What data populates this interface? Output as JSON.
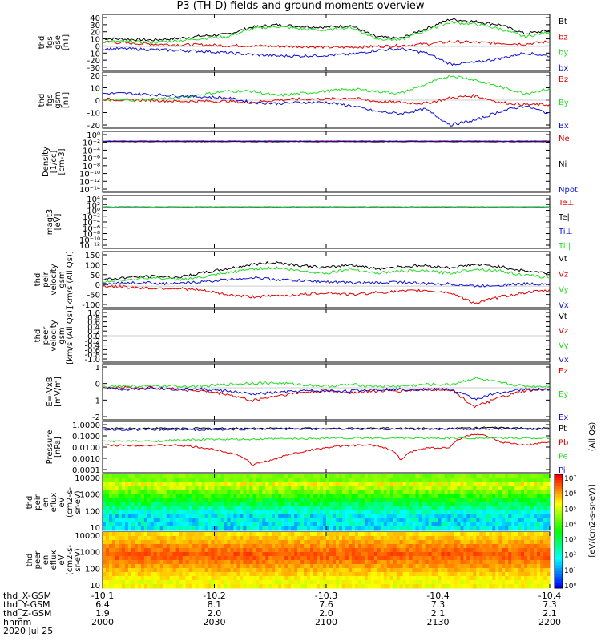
{
  "title": "P3 (TH-D) fields and ground moments overview",
  "colors": {
    "black": "#000000",
    "red": "#e00000",
    "green": "#22dd22",
    "blue": "#1010d0"
  },
  "x_axis": {
    "ticks": [
      "2000",
      "2030",
      "2100",
      "2130",
      "2200"
    ],
    "x_gsm": [
      "-10.1",
      "-10.2",
      "-10.3",
      "-10.4",
      "-10.4"
    ],
    "y_gsm": [
      "6.4",
      "8.1",
      "7.6",
      "7.3",
      "7.3"
    ],
    "z_gsm": [
      "1.9",
      "2.0",
      "2.0",
      "2.1",
      "2.1"
    ],
    "row_labels": [
      "thd_X-GSM",
      "thd_Y-GSM",
      "thd_Z-GSM",
      "hhmm",
      "2020 Jul 25"
    ]
  },
  "chart_data": [
    {
      "type": "line",
      "ylabel_lines": [
        "thd",
        "fgs",
        "gse",
        "[nT]"
      ],
      "ylim": [
        -30,
        40
      ],
      "yticks": [
        "40",
        "30",
        "20",
        "10",
        "0",
        "-10",
        "-20",
        "-30"
      ],
      "series": [
        {
          "name": "Bt",
          "color": "black",
          "values": [
            10,
            9,
            8,
            10,
            13,
            15,
            24,
            27,
            25,
            24,
            26,
            12,
            10,
            22,
            34,
            31,
            27,
            16,
            20
          ]
        },
        {
          "name": "bz",
          "color": "red",
          "values": [
            6,
            4,
            3,
            2,
            2,
            1,
            1,
            0,
            0,
            -1,
            -1,
            0,
            1,
            3,
            6,
            5,
            4,
            3,
            6
          ]
        },
        {
          "name": "by",
          "color": "green",
          "values": [
            6,
            6,
            5,
            7,
            10,
            12,
            22,
            25,
            22,
            20,
            24,
            10,
            8,
            20,
            30,
            28,
            22,
            12,
            18
          ]
        },
        {
          "name": "bx",
          "color": "blue",
          "values": [
            -3,
            -3,
            -4,
            -5,
            -6,
            -8,
            -10,
            -12,
            -12,
            -11,
            -10,
            -5,
            -3,
            -8,
            -22,
            -20,
            -15,
            -8,
            -12
          ]
        }
      ]
    },
    {
      "type": "line",
      "ylabel_lines": [
        "thd",
        "fgs",
        "gsm",
        "[nT]"
      ],
      "ylim": [
        -25,
        25
      ],
      "yticks": [
        "20",
        "10",
        "0",
        "-10",
        "-20"
      ],
      "series": [
        {
          "name": "Bz",
          "color": "red",
          "values": [
            1,
            0,
            0,
            -1,
            -1,
            -1,
            -2,
            0,
            1,
            1,
            2,
            -1,
            -2,
            -3,
            2,
            4,
            -2,
            -4,
            -4
          ]
        },
        {
          "name": "By",
          "color": "green",
          "values": [
            0,
            0,
            1,
            2,
            5,
            8,
            8,
            4,
            6,
            8,
            10,
            8,
            6,
            14,
            22,
            18,
            12,
            6,
            10
          ]
        },
        {
          "name": "Bx",
          "color": "blue",
          "values": [
            6,
            6,
            5,
            4,
            3,
            2,
            -2,
            -3,
            -2,
            -2,
            -5,
            -10,
            -12,
            -8,
            -22,
            -18,
            -10,
            -5,
            -12
          ]
        }
      ]
    },
    {
      "type": "line",
      "ylabel_lines": [
        "Density",
        "[1/cc]",
        "[cm-3]"
      ],
      "log": true,
      "ylim": [
        -14,
        2
      ],
      "yticks": [
        "10⁰",
        "10⁻²",
        "10⁻⁴",
        "10⁻⁶",
        "10⁻⁸",
        "10⁻¹⁰",
        "10⁻¹²",
        "10⁻¹⁴"
      ],
      "series": [
        {
          "name": "Ne",
          "color": "red",
          "values": [
            0.3,
            0.3,
            0.3,
            0.3
          ]
        },
        {
          "name": "Ni",
          "color": "black",
          "values": [
            0.2,
            0.2,
            0.2,
            0.2
          ]
        },
        {
          "name": "Npot",
          "color": "blue",
          "values": [
            0.25,
            0.25,
            0.25,
            0.25
          ]
        }
      ]
    },
    {
      "type": "line",
      "ylabel_lines": [
        "magt3",
        "[eV]"
      ],
      "log": true,
      "ylim": [
        -12,
        4
      ],
      "yticks": [
        "10⁴",
        "10²",
        "10⁰",
        "10⁻²",
        "10⁻⁴",
        "10⁻⁶",
        "10⁻⁸",
        "10⁻¹⁰",
        "10⁻¹²"
      ],
      "series": [
        {
          "name": "Te⊥",
          "color": "red",
          "values": [
            3,
            3,
            3,
            3
          ]
        },
        {
          "name": "Te||",
          "color": "black",
          "values": [
            3.2,
            3.2,
            3.2,
            3.2
          ]
        },
        {
          "name": "Ti⊥",
          "color": "blue",
          "values": [
            3.6,
            3.6,
            3.6,
            3.6
          ]
        },
        {
          "name": "Ti||",
          "color": "green",
          "values": [
            3.4,
            3.4,
            3.4,
            3.4
          ]
        }
      ]
    },
    {
      "type": "line",
      "ylabel_lines": [
        "thd",
        "peir",
        "velocity",
        "gsm",
        "[km/s (All Qs)]"
      ],
      "ylim": [
        -100,
        160
      ],
      "yticks": [
        "150",
        "100",
        "50",
        "0",
        "-50",
        "-100"
      ],
      "series": [
        {
          "name": "Vt",
          "color": "black",
          "values": [
            30,
            40,
            45,
            40,
            60,
            80,
            100,
            110,
            95,
            85,
            100,
            80,
            90,
            95,
            85,
            100,
            90,
            70,
            60
          ]
        },
        {
          "name": "Vz",
          "color": "red",
          "values": [
            0,
            -5,
            -10,
            -10,
            -20,
            -40,
            -50,
            -45,
            -40,
            -30,
            -40,
            -30,
            -25,
            -20,
            -30,
            -80,
            -50,
            -30,
            -20
          ]
        },
        {
          "name": "Vy",
          "color": "green",
          "values": [
            20,
            30,
            40,
            30,
            40,
            60,
            80,
            85,
            70,
            60,
            80,
            60,
            70,
            70,
            60,
            80,
            70,
            50,
            40
          ]
        },
        {
          "name": "Vx",
          "color": "blue",
          "values": [
            10,
            15,
            15,
            10,
            20,
            30,
            40,
            30,
            25,
            20,
            15,
            15,
            20,
            10,
            10,
            0,
            5,
            10,
            10
          ]
        }
      ]
    },
    {
      "type": "line",
      "ylabel_lines": [
        "thd",
        "peer",
        "velocity",
        "gsm",
        "[km/s (All Qs)]"
      ],
      "ylim": [
        -1,
        1
      ],
      "yticks": [
        "1.0",
        "0.8",
        "0.6",
        "0.4",
        "0.2",
        "0.0",
        "-0.2",
        "-0.4",
        "-0.6",
        "-0.8",
        "-1.0"
      ],
      "series": [
        {
          "name": "Vt",
          "color": "black",
          "values": []
        },
        {
          "name": "Vz",
          "color": "red",
          "values": []
        },
        {
          "name": "Vy",
          "color": "green",
          "values": []
        },
        {
          "name": "Vx",
          "color": "blue",
          "values": []
        }
      ]
    },
    {
      "type": "line",
      "ylabel_lines": [
        "E=-VxB",
        "[mV/m]"
      ],
      "ylim": [
        -2,
        1.5
      ],
      "yticks": [
        "1",
        "0",
        "-1",
        "-2"
      ],
      "series": [
        {
          "name": "Ez",
          "color": "red",
          "values": [
            0,
            0,
            0,
            -0.1,
            -0.2,
            -0.4,
            -0.8,
            -0.5,
            -0.3,
            -0.2,
            -0.3,
            -0.2,
            -0.2,
            -0.1,
            -0.1,
            -1.2,
            -0.6,
            -0.2,
            -0.1
          ]
        },
        {
          "name": "Ey",
          "color": "green",
          "values": [
            0.1,
            0.1,
            0.1,
            0.1,
            0.1,
            0.2,
            0.3,
            0.3,
            0.2,
            0.1,
            0.2,
            0.1,
            0.1,
            0.2,
            0.2,
            0.6,
            0.3,
            0.1,
            0.1
          ]
        },
        {
          "name": "Ex",
          "color": "blue",
          "values": [
            0,
            -0.1,
            0,
            -0.1,
            -0.1,
            -0.2,
            -0.4,
            -0.3,
            -0.2,
            -0.2,
            -0.2,
            -0.1,
            -0.1,
            -0.1,
            -0.1,
            -0.7,
            -0.3,
            -0.1,
            -0.1
          ]
        }
      ]
    },
    {
      "type": "line",
      "ylabel_lines": [
        "Pressure",
        "[nPa]"
      ],
      "log": true,
      "ylim": [
        -3.5,
        0.2
      ],
      "yticks": [
        "1.0000",
        "0.1000",
        "0.0100",
        "0.0010",
        "0.0001"
      ],
      "series": [
        {
          "name": "Pt",
          "color": "black",
          "values": [
            0.5,
            0.5,
            0.5,
            0.5,
            0.5,
            0.5,
            0.5,
            0.5,
            0.5,
            0.5,
            0.5,
            0.5,
            0.5,
            0.5,
            0.5,
            0.55,
            0.55,
            0.5,
            0.5
          ]
        },
        {
          "name": "Pb",
          "color": "red",
          "values": [
            0.03,
            0.03,
            0.03,
            0.03,
            0.02,
            0.01,
            0.001,
            0.003,
            0.01,
            0.02,
            0.03,
            0.03,
            0.002,
            0.02,
            0.02,
            0.2,
            0.05,
            0.03,
            0.05
          ]
        },
        {
          "name": "Pe",
          "color": "green",
          "values": [
            0.06,
            0.06,
            0.06,
            0.07,
            0.08,
            0.08,
            0.08,
            0.09,
            0.09,
            0.1,
            0.1,
            0.1,
            0.1,
            0.1,
            0.1,
            0.1,
            0.1,
            0.1,
            0.1
          ]
        },
        {
          "name": "Pi",
          "color": "blue",
          "values": [
            0.4,
            0.4,
            0.4,
            0.4,
            0.4,
            0.4,
            0.45,
            0.45,
            0.45,
            0.45,
            0.45,
            0.45,
            0.45,
            0.45,
            0.45,
            0.45,
            0.45,
            0.45,
            0.45
          ]
        }
      ]
    },
    {
      "type": "heatmap",
      "ylabel_lines": [
        "thd",
        "peir",
        "en",
        "eflux",
        "eV",
        "(cm2-s-",
        "sr-eV)"
      ],
      "yticks": [
        "10000",
        "1000",
        "100",
        "10"
      ]
    },
    {
      "type": "heatmap",
      "ylabel_lines": [
        "thd",
        "peer",
        "en",
        "eflux",
        "eV",
        "(cm2-s-",
        "sr-eV)"
      ],
      "yticks": [
        "10000",
        "1000",
        "100",
        "10"
      ]
    }
  ],
  "colorbar": {
    "label": "[eV/(cm2-s-sr-eV)]",
    "top_label": "(All Qs)",
    "ticks": [
      "10⁷",
      "10⁶",
      "10⁵",
      "10⁴",
      "10³",
      "10²",
      "10¹",
      "10⁰"
    ]
  }
}
